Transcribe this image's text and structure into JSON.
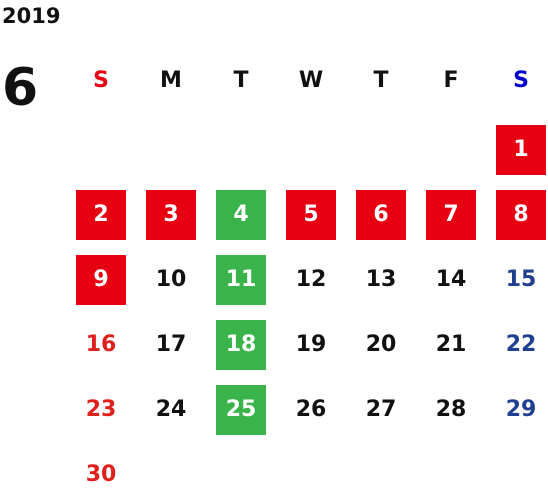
{
  "calendar": {
    "year": "2019",
    "month": "6",
    "weekdays": [
      {
        "label": "S",
        "color": "#e60012"
      },
      {
        "label": "M",
        "color": "#111111"
      },
      {
        "label": "T",
        "color": "#111111"
      },
      {
        "label": "W",
        "color": "#111111"
      },
      {
        "label": "T",
        "color": "#111111"
      },
      {
        "label": "F",
        "color": "#111111"
      },
      {
        "label": "S",
        "color": "#0000cc"
      }
    ],
    "colors": {
      "red_fill": "#e60012",
      "green_fill": "#3ab34a",
      "on_fill_text": "#ffffff",
      "sunday_text": "#e0201d",
      "saturday_text": "#1f3f91",
      "weekday_text": "#111111"
    },
    "first_weekday_index": 6,
    "days": [
      {
        "label": "1",
        "highlight": "red"
      },
      {
        "label": "2",
        "highlight": "red"
      },
      {
        "label": "3",
        "highlight": "red"
      },
      {
        "label": "4",
        "highlight": "green"
      },
      {
        "label": "5",
        "highlight": "red"
      },
      {
        "label": "6",
        "highlight": "red"
      },
      {
        "label": "7",
        "highlight": "red"
      },
      {
        "label": "8",
        "highlight": "red"
      },
      {
        "label": "9",
        "highlight": "red"
      },
      {
        "label": "10",
        "highlight": "none"
      },
      {
        "label": "11",
        "highlight": "green"
      },
      {
        "label": "12",
        "highlight": "none"
      },
      {
        "label": "13",
        "highlight": "none"
      },
      {
        "label": "14",
        "highlight": "none"
      },
      {
        "label": "15",
        "highlight": "none"
      },
      {
        "label": "16",
        "highlight": "none"
      },
      {
        "label": "17",
        "highlight": "none"
      },
      {
        "label": "18",
        "highlight": "green"
      },
      {
        "label": "19",
        "highlight": "none"
      },
      {
        "label": "20",
        "highlight": "none"
      },
      {
        "label": "21",
        "highlight": "none"
      },
      {
        "label": "22",
        "highlight": "none"
      },
      {
        "label": "23",
        "highlight": "none"
      },
      {
        "label": "24",
        "highlight": "none"
      },
      {
        "label": "25",
        "highlight": "green"
      },
      {
        "label": "26",
        "highlight": "none"
      },
      {
        "label": "27",
        "highlight": "none"
      },
      {
        "label": "28",
        "highlight": "none"
      },
      {
        "label": "29",
        "highlight": "none"
      },
      {
        "label": "30",
        "highlight": "none"
      }
    ]
  }
}
